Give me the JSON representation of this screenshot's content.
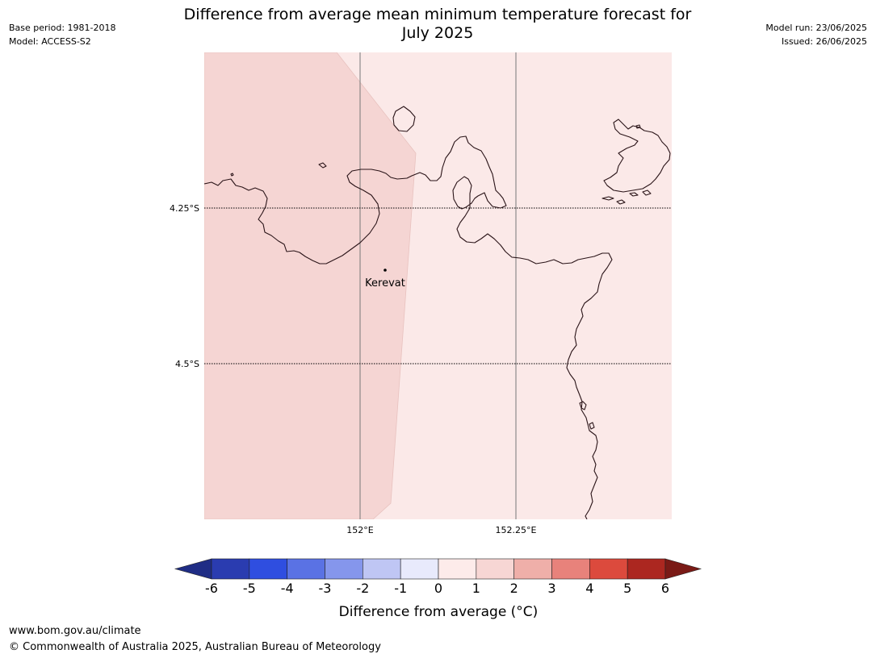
{
  "header": {
    "title_line1": "Difference from average mean minimum temperature forecast for",
    "title_line2": "July 2025",
    "base_period": "Base period: 1981-2018",
    "model": "Model: ACCESS-S2",
    "model_run": "Model run: 23/06/2025",
    "issued": "Issued: 26/06/2025"
  },
  "map": {
    "gridlines": {
      "latitudes": [
        "4.25°S",
        "4.5°S"
      ],
      "longitudes": [
        "152°E",
        "152.25°E"
      ]
    },
    "places": [
      {
        "name": "Kerevat"
      }
    ],
    "fill_colors": {
      "anomaly_1_to_2": "#f5d5d3",
      "anomaly_0_to_1": "#fbe9e8"
    }
  },
  "colorbar": {
    "title": "Difference from average (°C)",
    "tick_labels": [
      "-6",
      "-5",
      "-4",
      "-3",
      "-2",
      "-1",
      "0",
      "1",
      "2",
      "3",
      "4",
      "5",
      "6"
    ],
    "under_color": "#1f2d85",
    "over_color": "#7a1a16",
    "colors": [
      "#2a3cb0",
      "#2f4ee0",
      "#5a72e4",
      "#8596ec",
      "#bfc6f4",
      "#e8eafc",
      "#fdebea",
      "#f7d6d4",
      "#efafa9",
      "#e8827b",
      "#dc4a3d",
      "#ac2720"
    ]
  },
  "footer": {
    "url": "www.bom.gov.au/climate",
    "copyright": "© Commonwealth of Australia 2025, Australian Bureau of Meteorology"
  }
}
